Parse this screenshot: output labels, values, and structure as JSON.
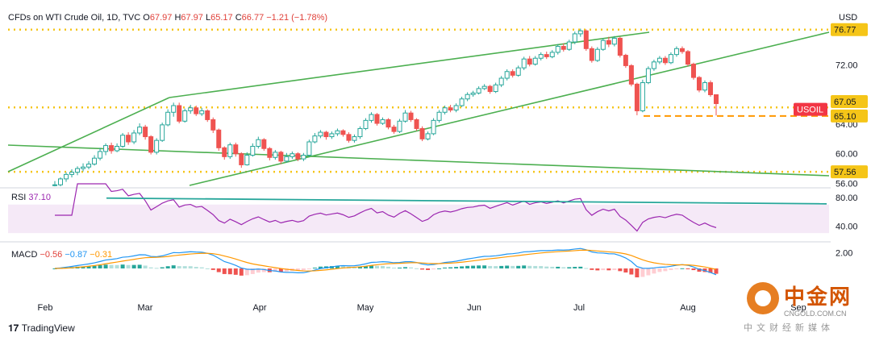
{
  "header": {
    "symbol": "CFDs on WTI Crude Oil, 1D, TVC",
    "open_label": "O",
    "open": "67.97",
    "high_label": "H",
    "high": "67.97",
    "low_label": "L",
    "low": "65.17",
    "close_label": "C",
    "close": "66.77",
    "change": "−1.21 (−1.78%)",
    "currency": "USD"
  },
  "rsi": {
    "label": "RSI",
    "value": "37.10"
  },
  "macd": {
    "label": "MACD",
    "histogram": "−0.56",
    "macd_value": "−0.87",
    "signal_value": "−0.31"
  },
  "branding": {
    "tradingview": "TradingView"
  },
  "watermark": {
    "chinese": "中金网",
    "site": "CNGOLD.COM.CN",
    "subtitle": "中文财经新媒体"
  },
  "colors": {
    "up": "#26a69a",
    "down": "#ef5350",
    "trendline": "#4caf50",
    "level": "#f5c518",
    "rsi": "#9c27b0",
    "macd": "#2196f3",
    "signal": "#ff9800",
    "tag_red": "#f23645"
  },
  "chart_data": {
    "type": "candlestick",
    "instrument": "CFDs on WTI Crude Oil",
    "timeframe": "1D",
    "x_labels": [
      "Feb",
      "Mar",
      "Apr",
      "May",
      "Jun",
      "Jul",
      "Aug",
      "Sep"
    ],
    "y_ticks": [
      56.0,
      60.0,
      64.0,
      72.0,
      76.77
    ],
    "y_range": [
      55.5,
      77.5
    ],
    "price_tags": [
      {
        "label": "76.77",
        "value": 76.77,
        "style": "yellow"
      },
      {
        "label": "67.05",
        "value": 67.05,
        "style": "yellow"
      },
      {
        "label": "USOIL",
        "value": 66.0,
        "style": "red"
      },
      {
        "label": "65.10",
        "value": 65.1,
        "style": "yellow"
      },
      {
        "label": "57.56",
        "value": 57.56,
        "style": "yellow"
      }
    ],
    "horizontal_levels": [
      {
        "value": 76.77,
        "style": "dotted"
      },
      {
        "value": 66.25,
        "style": "dotted"
      },
      {
        "value": 65.1,
        "style": "dashed"
      },
      {
        "value": 57.56,
        "style": "dotted"
      }
    ],
    "candles": [
      [
        55.8,
        55.8,
        56.3,
        55.6
      ],
      [
        55.8,
        56.6,
        56.8,
        55.6
      ],
      [
        56.6,
        57.2,
        57.5,
        56.2
      ],
      [
        57.2,
        57.5,
        57.9,
        56.8
      ],
      [
        57.5,
        58.0,
        58.3,
        57.1
      ],
      [
        58.0,
        58.2,
        58.7,
        57.6
      ],
      [
        58.2,
        58.6,
        59.0,
        57.9
      ],
      [
        58.6,
        59.4,
        59.8,
        58.4
      ],
      [
        59.4,
        60.3,
        60.8,
        59.1
      ],
      [
        60.3,
        61.1,
        61.4,
        59.8
      ],
      [
        61.1,
        60.4,
        61.5,
        60.0
      ],
      [
        60.4,
        61.0,
        61.4,
        60.2
      ],
      [
        61.0,
        62.5,
        62.8,
        60.8
      ],
      [
        62.5,
        61.6,
        62.9,
        61.2
      ],
      [
        61.6,
        62.8,
        63.2,
        61.3
      ],
      [
        62.8,
        63.6,
        64.1,
        62.5
      ],
      [
        63.6,
        62.3,
        63.9,
        61.9
      ],
      [
        62.3,
        60.2,
        62.5,
        59.9
      ],
      [
        60.2,
        61.8,
        62.1,
        59.9
      ],
      [
        61.8,
        63.9,
        64.2,
        61.6
      ],
      [
        63.9,
        65.6,
        66.0,
        63.7
      ],
      [
        65.6,
        66.5,
        66.9,
        65.0
      ],
      [
        66.5,
        64.4,
        66.9,
        64.1
      ],
      [
        64.4,
        65.8,
        66.1,
        64.2
      ],
      [
        65.8,
        66.2,
        66.6,
        65.4
      ],
      [
        66.2,
        65.4,
        66.5,
        65.1
      ],
      [
        65.4,
        65.8,
        66.2,
        65.1
      ],
      [
        65.8,
        64.6,
        66.0,
        64.3
      ],
      [
        64.6,
        63.2,
        64.9,
        62.8
      ],
      [
        63.2,
        60.8,
        63.4,
        60.4
      ],
      [
        60.8,
        59.6,
        61.0,
        59.2
      ],
      [
        59.6,
        61.2,
        61.5,
        59.3
      ],
      [
        61.2,
        60.0,
        61.5,
        59.6
      ],
      [
        60.0,
        58.5,
        60.2,
        58.1
      ],
      [
        58.5,
        59.8,
        60.2,
        58.4
      ],
      [
        59.8,
        61.0,
        61.4,
        59.6
      ],
      [
        61.0,
        61.9,
        62.3,
        60.7
      ],
      [
        61.9,
        60.7,
        62.1,
        60.4
      ],
      [
        60.7,
        59.5,
        60.9,
        59.1
      ],
      [
        59.5,
        60.2,
        60.5,
        59.2
      ],
      [
        60.2,
        59.0,
        60.4,
        58.6
      ],
      [
        59.0,
        59.6,
        60.1,
        58.8
      ],
      [
        59.6,
        60.0,
        60.3,
        59.3
      ],
      [
        60.0,
        59.3,
        60.2,
        59.0
      ],
      [
        59.3,
        59.8,
        60.1,
        59.0
      ],
      [
        59.8,
        61.6,
        61.9,
        59.6
      ],
      [
        61.6,
        62.4,
        62.8,
        61.4
      ],
      [
        62.4,
        62.9,
        63.2,
        62.1
      ],
      [
        62.9,
        62.3,
        63.1,
        61.9
      ],
      [
        62.3,
        62.7,
        63.0,
        62.0
      ],
      [
        62.7,
        63.1,
        63.4,
        62.4
      ],
      [
        63.1,
        62.6,
        63.3,
        62.3
      ],
      [
        62.6,
        61.8,
        62.9,
        61.5
      ],
      [
        61.8,
        62.3,
        62.6,
        61.5
      ],
      [
        62.3,
        63.4,
        63.7,
        62.0
      ],
      [
        63.4,
        64.5,
        64.8,
        63.2
      ],
      [
        64.5,
        65.3,
        65.6,
        64.2
      ],
      [
        65.3,
        64.1,
        65.5,
        63.8
      ],
      [
        64.1,
        64.6,
        64.9,
        63.9
      ],
      [
        64.6,
        63.6,
        64.8,
        63.3
      ],
      [
        63.6,
        63.0,
        63.9,
        62.7
      ],
      [
        63.0,
        64.4,
        64.7,
        62.8
      ],
      [
        64.4,
        65.5,
        65.9,
        64.2
      ],
      [
        65.5,
        64.6,
        65.8,
        64.3
      ],
      [
        64.6,
        63.4,
        64.8,
        63.1
      ],
      [
        63.4,
        62.0,
        63.7,
        61.7
      ],
      [
        62.0,
        62.7,
        63.0,
        61.8
      ],
      [
        62.7,
        64.5,
        64.8,
        62.5
      ],
      [
        64.5,
        65.6,
        65.9,
        64.2
      ],
      [
        65.6,
        66.2,
        66.5,
        65.3
      ],
      [
        66.2,
        65.9,
        66.6,
        65.6
      ],
      [
        65.9,
        66.5,
        66.8,
        65.6
      ],
      [
        66.5,
        67.4,
        67.7,
        66.3
      ],
      [
        67.4,
        68.0,
        68.3,
        67.1
      ],
      [
        68.0,
        68.2,
        68.5,
        67.7
      ],
      [
        68.2,
        68.8,
        69.1,
        68.0
      ],
      [
        68.8,
        69.1,
        69.4,
        68.6
      ],
      [
        69.1,
        68.4,
        69.3,
        68.1
      ],
      [
        68.4,
        69.3,
        69.6,
        68.2
      ],
      [
        69.3,
        70.2,
        70.5,
        69.0
      ],
      [
        70.2,
        71.1,
        71.4,
        69.9
      ],
      [
        71.1,
        70.6,
        71.4,
        70.3
      ],
      [
        70.6,
        71.6,
        71.9,
        70.4
      ],
      [
        71.6,
        72.8,
        73.1,
        71.3
      ],
      [
        72.8,
        72.1,
        73.2,
        71.8
      ],
      [
        72.1,
        72.9,
        73.2,
        71.9
      ],
      [
        72.9,
        73.4,
        73.7,
        72.6
      ],
      [
        73.4,
        73.1,
        73.8,
        72.8
      ],
      [
        73.1,
        73.7,
        74.0,
        72.9
      ],
      [
        73.7,
        74.5,
        74.8,
        73.4
      ],
      [
        74.5,
        74.1,
        74.9,
        73.8
      ],
      [
        74.1,
        75.1,
        75.4,
        73.9
      ],
      [
        75.1,
        76.2,
        76.5,
        74.8
      ],
      [
        76.2,
        76.6,
        76.9,
        75.8
      ],
      [
        76.6,
        74.2,
        76.8,
        73.9
      ],
      [
        74.2,
        72.6,
        74.5,
        72.3
      ],
      [
        72.6,
        74.1,
        74.4,
        72.4
      ],
      [
        74.1,
        75.3,
        75.6,
        73.9
      ],
      [
        75.3,
        74.8,
        75.8,
        74.4
      ],
      [
        74.8,
        75.6,
        75.9,
        74.5
      ],
      [
        75.6,
        73.3,
        75.8,
        73.0
      ],
      [
        73.3,
        71.9,
        73.5,
        71.6
      ],
      [
        71.9,
        69.4,
        72.1,
        69.1
      ],
      [
        69.4,
        65.8,
        69.6,
        65.2
      ],
      [
        65.8,
        69.6,
        70.0,
        65.6
      ],
      [
        69.6,
        71.5,
        71.8,
        69.4
      ],
      [
        71.5,
        72.4,
        72.7,
        71.2
      ],
      [
        72.4,
        72.9,
        73.2,
        72.1
      ],
      [
        72.9,
        72.3,
        73.2,
        72.0
      ],
      [
        72.3,
        73.4,
        73.7,
        72.1
      ],
      [
        73.4,
        74.2,
        74.5,
        73.1
      ],
      [
        74.2,
        73.8,
        74.5,
        73.5
      ],
      [
        73.8,
        72.1,
        74.0,
        71.8
      ],
      [
        72.1,
        70.3,
        72.3,
        70.0
      ],
      [
        70.3,
        68.6,
        70.5,
        68.3
      ],
      [
        68.6,
        69.6,
        69.9,
        68.3
      ],
      [
        69.6,
        67.97,
        69.9,
        67.7
      ],
      [
        67.97,
        66.77,
        67.97,
        65.17
      ]
    ],
    "rsi": {
      "value": 37.1,
      "y_ticks": [
        40,
        80
      ],
      "overbought": 70,
      "oversold": 30
    },
    "macd": {
      "histogram": -0.56,
      "macd": -0.87,
      "signal": -0.31,
      "y_ticks": [
        2.0
      ]
    }
  }
}
